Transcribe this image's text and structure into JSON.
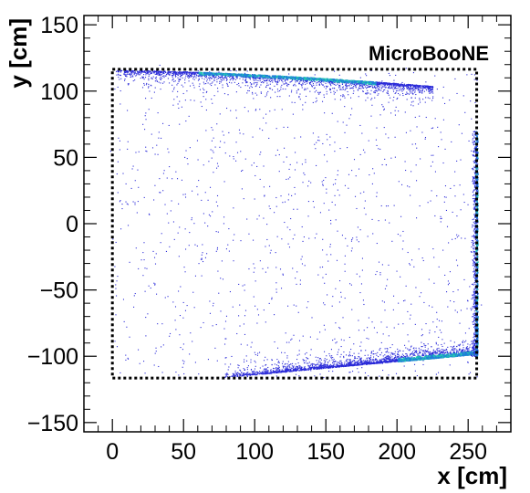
{
  "chart_data": {
    "type": "scatter",
    "title": "",
    "annotation": "MicroBooNE",
    "xlabel": "x [cm]",
    "ylabel": "y [cm]",
    "xlim": [
      -20,
      280
    ],
    "ylim": [
      -157,
      157
    ],
    "xticks": [
      0,
      50,
      100,
      150,
      200,
      250
    ],
    "yticks": [
      -150,
      -100,
      -50,
      0,
      50,
      100,
      150
    ],
    "grid": false,
    "legend": "none",
    "colors": {
      "point_low": "#2a2ad8",
      "point_mid": "#1f7fd8",
      "point_high": "#22c7b0",
      "frame": "#000000",
      "boundary": "#000000"
    },
    "detector_boundary": {
      "x": [
        0,
        256
      ],
      "y": [
        -116.5,
        116.5
      ],
      "style": "dotted"
    },
    "density_bands": [
      {
        "name": "top band",
        "x": [
          2,
          225
        ],
        "y_start": 116,
        "y_end": 104,
        "peak_x": [
          60,
          185
        ]
      },
      {
        "name": "bottom band",
        "x": [
          78,
          256
        ],
        "y_start": -116,
        "y_end": -98,
        "peak_x": [
          200,
          255
        ]
      },
      {
        "name": "right band",
        "x": [
          252,
          258
        ],
        "y": [
          -100,
          70
        ]
      }
    ],
    "x_ticks_labels": [
      "0",
      "50",
      "100",
      "150",
      "200",
      "250"
    ],
    "y_ticks_labels": [
      "−150",
      "−100",
      "−50",
      "0",
      "50",
      "100",
      "150"
    ]
  }
}
